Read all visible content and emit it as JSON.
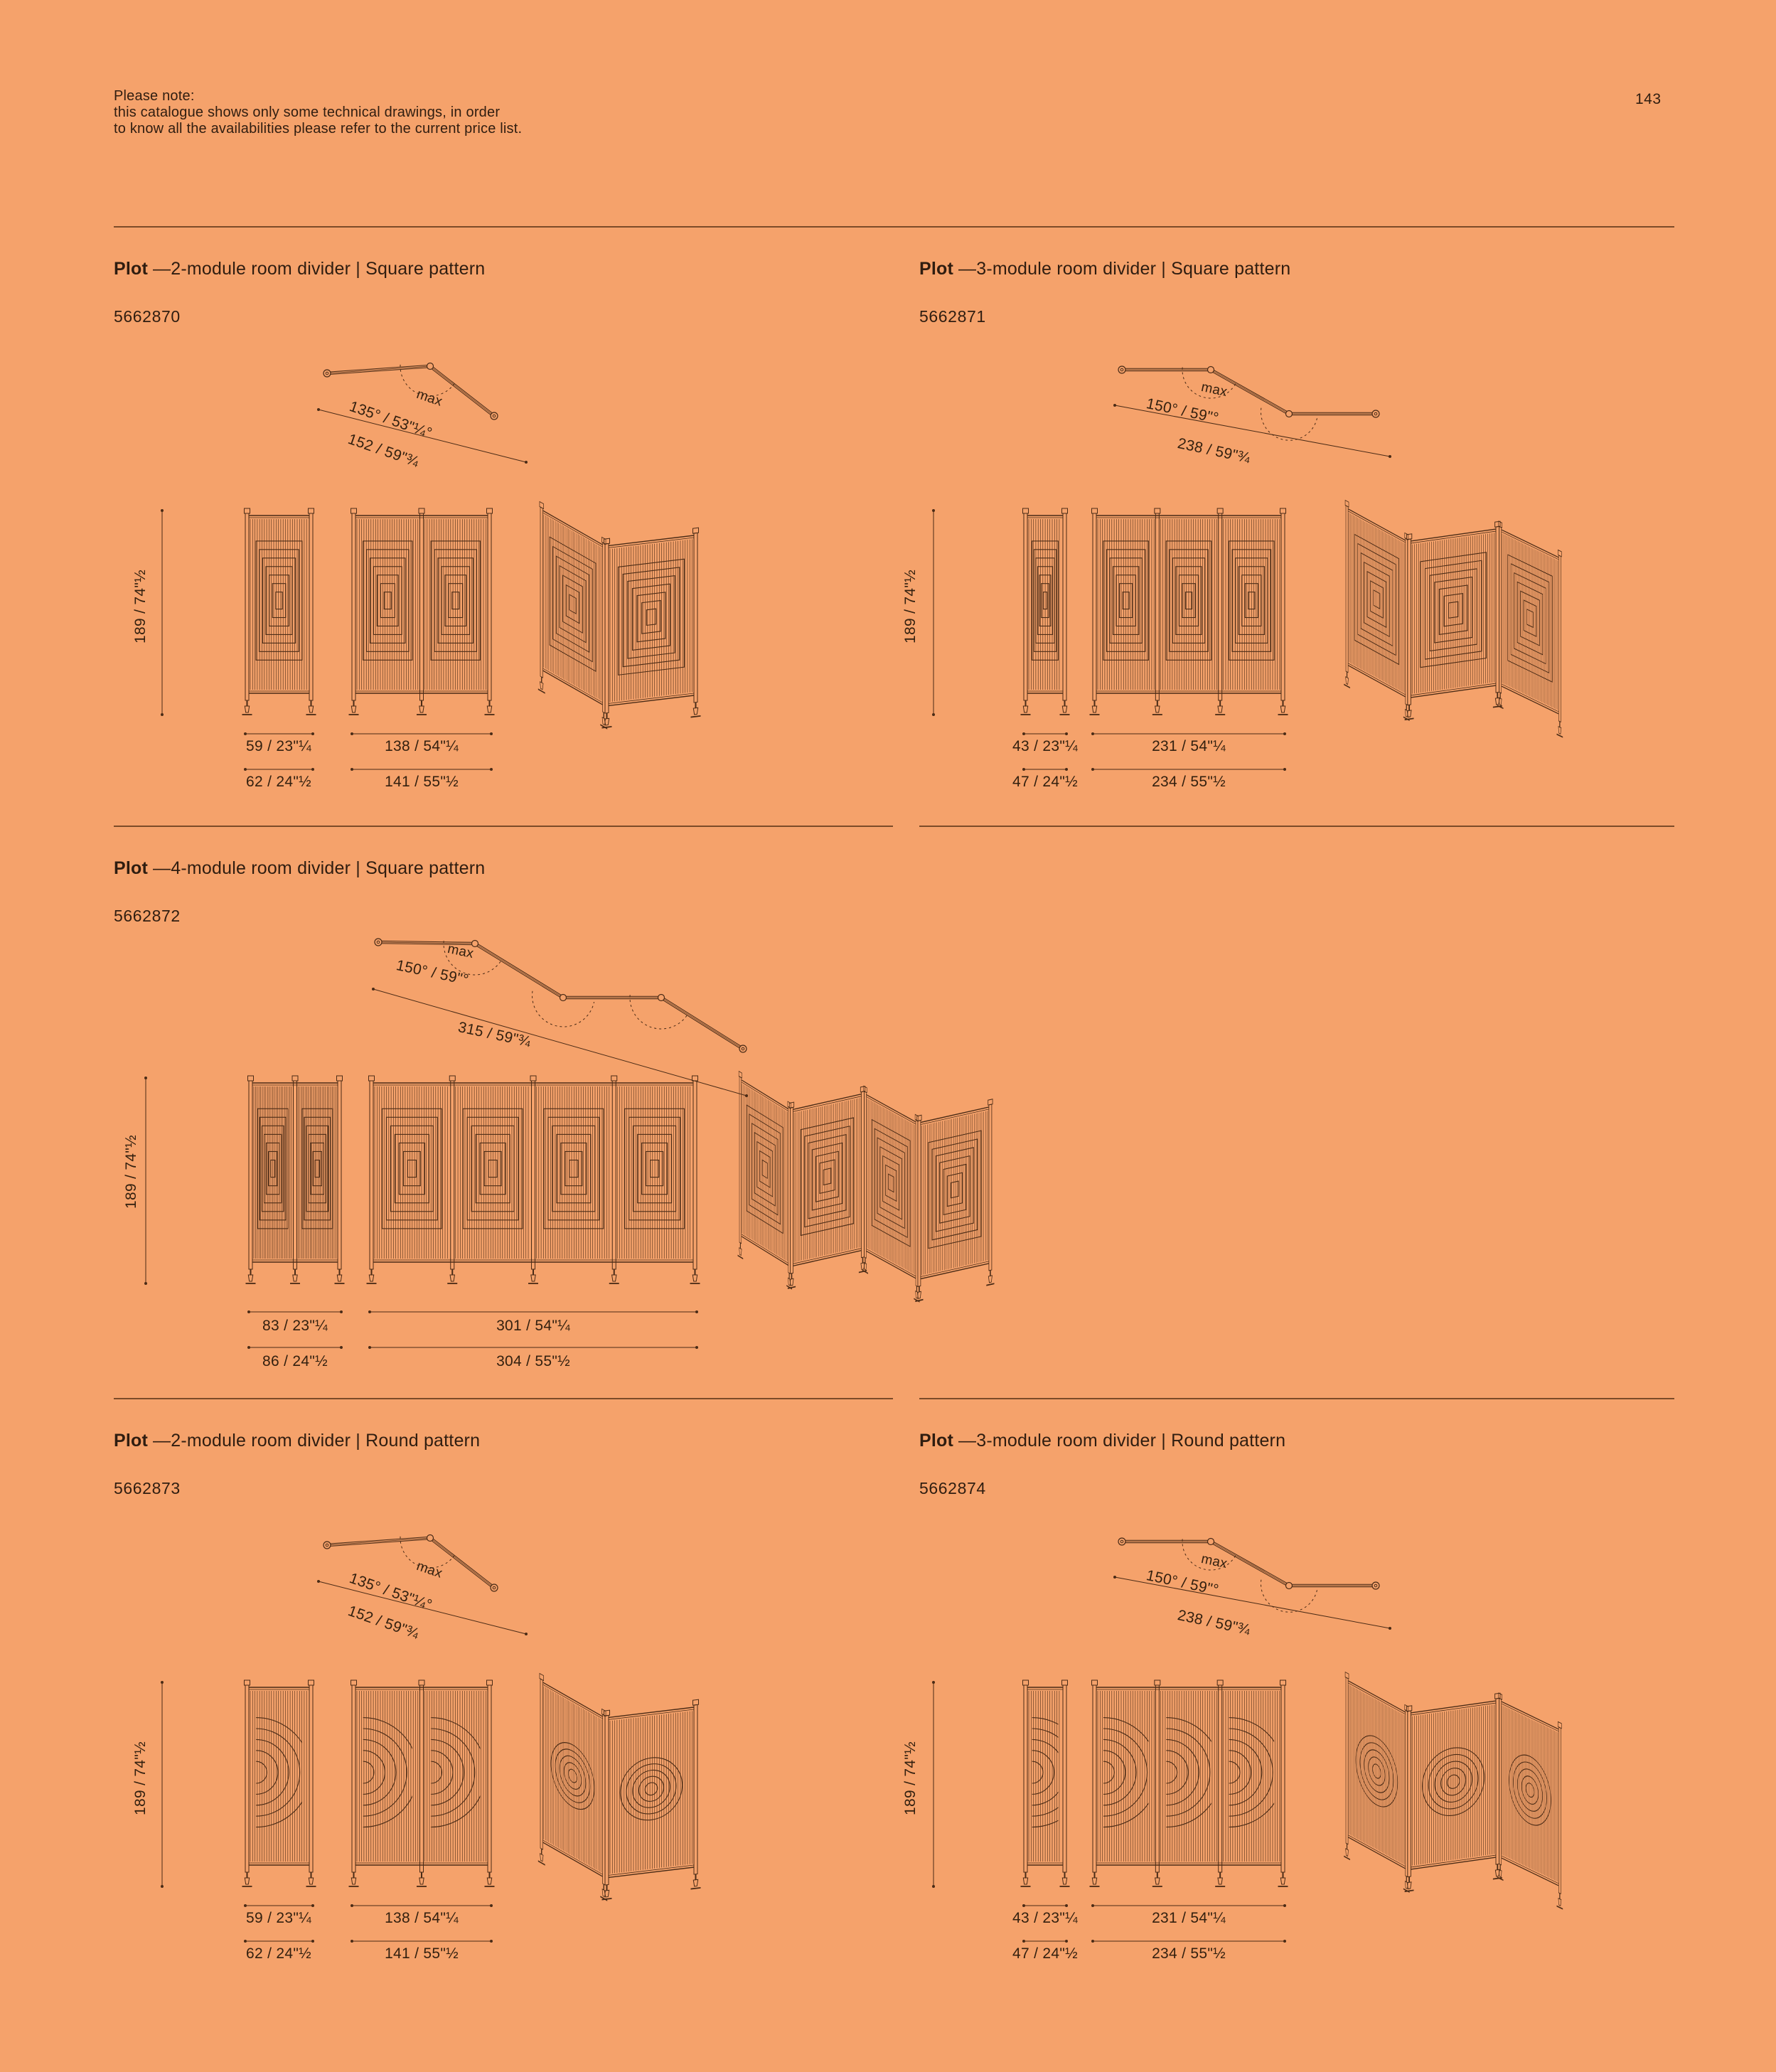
{
  "page": {
    "note_line1": "Please note:",
    "note_line2": "this catalogue shows only some technical drawings, in order",
    "note_line3": "to know all the availabilities please refer to the current price list.",
    "page_number": "143",
    "background_color": "#F5A26B",
    "ink_color": "#2F1D10",
    "drawing_color": "#4A2B16",
    "rule_color": "#7C4B28"
  },
  "sections": [
    {
      "brand": "Plot",
      "title": "—2-module room divider | Square pattern",
      "code": "5662870",
      "modules": 2,
      "pattern": "square",
      "top_view": {
        "max": "max",
        "angle": "135° / 53\"¼°",
        "span": "152 / 59\"¾"
      },
      "height": "189 / 74\"½",
      "dims": {
        "module_top": "59 / 23\"¼",
        "module_bottom": "62 / 24\"½",
        "total_top": "138 / 54\"¼",
        "total_bottom": "141  / 55\"½"
      }
    },
    {
      "brand": "Plot",
      "title": "—3-module room divider | Square pattern",
      "code": "5662871",
      "modules": 3,
      "pattern": "square",
      "top_view": {
        "max": "max",
        "angle": "150° / 59\"°",
        "span": "238 / 59\"¾"
      },
      "height": "189 / 74\"½",
      "dims": {
        "module_top": "43 / 23\"¼",
        "module_bottom": "47 / 24\"½",
        "total_top": "231 / 54\"¼",
        "total_bottom": "234  / 55\"½"
      }
    },
    {
      "brand": "Plot",
      "title": "—4-module room divider | Square pattern",
      "code": "5662872",
      "modules": 4,
      "pattern": "square",
      "top_view": {
        "max": "max",
        "angle": "150° / 59\"°",
        "span": "315 / 59\"¾"
      },
      "height": "189 / 74\"½",
      "dims": {
        "module_top": "83 / 23\"¼",
        "module_bottom": "86 / 24\"½",
        "total_top": "301 / 54\"¼",
        "total_bottom": "304  / 55\"½"
      }
    },
    {
      "brand": "Plot",
      "title": "—2-module room divider | Round pattern",
      "code": "5662873",
      "modules": 2,
      "pattern": "round",
      "top_view": {
        "max": "max",
        "angle": "135° / 53\"¼°",
        "span": "152 / 59\"¾"
      },
      "height": "189 / 74\"½",
      "dims": {
        "module_top": "59 / 23\"¼",
        "module_bottom": "62 / 24\"½",
        "total_top": "138 / 54\"¼",
        "total_bottom": "141  / 55\"½"
      }
    },
    {
      "brand": "Plot",
      "title": "—3-module room divider | Round pattern",
      "code": "5662874",
      "modules": 3,
      "pattern": "round",
      "top_view": {
        "max": "max",
        "angle": "150° / 59\"°",
        "span": "238 / 59\"¾"
      },
      "height": "189 / 74\"½",
      "dims": {
        "module_top": "43 / 23\"¼",
        "module_bottom": "47 / 24\"½",
        "total_top": "231 / 54\"¼",
        "total_bottom": "234  / 55\"½"
      }
    }
  ]
}
